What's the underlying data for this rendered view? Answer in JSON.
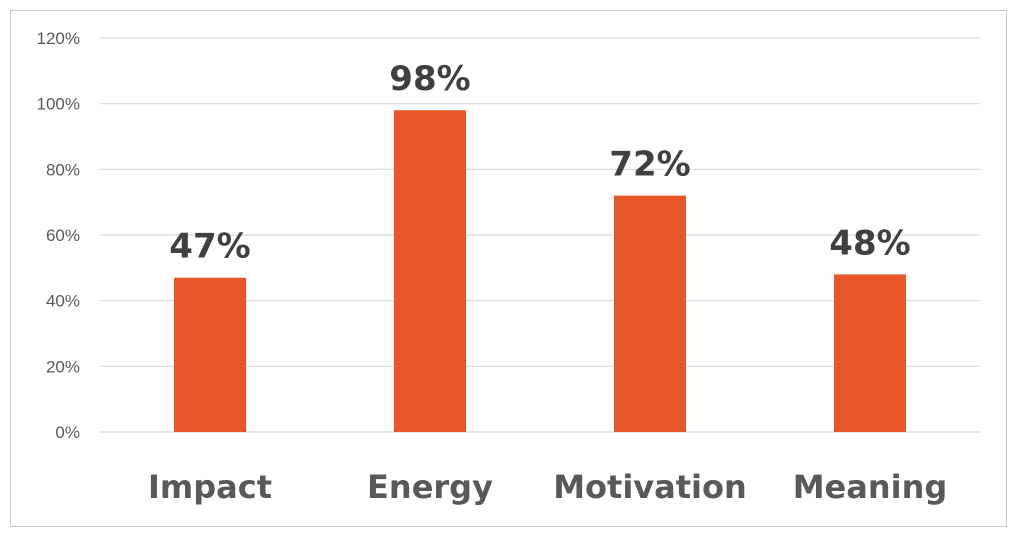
{
  "chart_data": {
    "type": "bar",
    "categories": [
      "Impact",
      "Energy",
      "Motivation",
      "Meaning"
    ],
    "values": [
      47,
      98,
      72,
      48
    ],
    "data_labels": [
      "47%",
      "98%",
      "72%",
      "48%"
    ],
    "ylim": [
      0,
      120
    ],
    "yticks": [
      0,
      20,
      40,
      60,
      80,
      100,
      120
    ],
    "ytick_labels": [
      "0%",
      "20%",
      "40%",
      "60%",
      "80%",
      "100%",
      "120%"
    ],
    "grid": true,
    "legend": "none",
    "bar_color": "#e8572a"
  }
}
